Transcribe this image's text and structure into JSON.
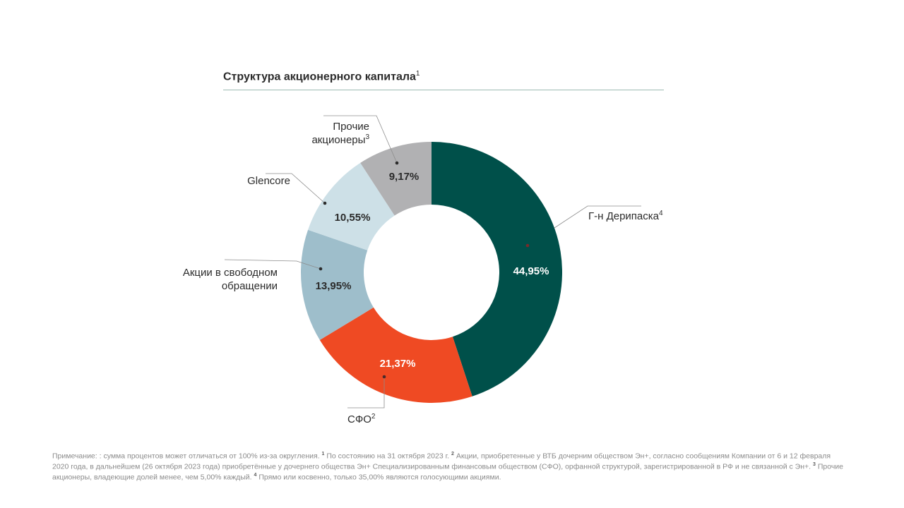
{
  "header": {
    "title": "Структура акционерного капитала",
    "title_note": "1"
  },
  "chart_data": {
    "type": "pie",
    "donut": true,
    "slices": [
      {
        "label": "Г-н Дерипаска",
        "note": "4",
        "value": 44.95,
        "display": "44,95%",
        "color": "#00504a"
      },
      {
        "label": "СФО",
        "note": "2",
        "value": 21.37,
        "display": "21,37%",
        "color": "#ef4a23"
      },
      {
        "label": "Акции в свободном обращении",
        "note": "",
        "value": 13.95,
        "display": "13,95%",
        "color": "#9ebecb"
      },
      {
        "label": "Glencore",
        "note": "",
        "value": 10.55,
        "display": "10,55%",
        "color": "#cde0e7"
      },
      {
        "label": "Прочие акционеры",
        "note": "3",
        "value": 9.17,
        "display": "9,17%",
        "color": "#b1b1b3"
      }
    ]
  },
  "footnote": {
    "text": "Примечание: : сумма процентов может отличаться от 100% из-за округления.",
    "n1": "1",
    "t1": "По состоянию на 31 октября 2023 г.",
    "n2": "2",
    "t2": "Акции, приобретенные у ВТБ дочерним обществом Эн+, согласно сообщениям Компании от 6 и 12 февраля 2020 года, в дальнейшем (26 октября 2023 года) приобретённые у дочернего общества Эн+ Специализированным финансовым обществом (СФО), орфанной структурой, зарегистрированной в РФ и не связанной с Эн+.",
    "n3": "3",
    "t3": "Прочие акционеры, владеющие долей менее, чем 5,00% каждый.",
    "n4": "4",
    "t4": "Прямо или косвенно, только 35,00% являются голосующими акциями."
  }
}
